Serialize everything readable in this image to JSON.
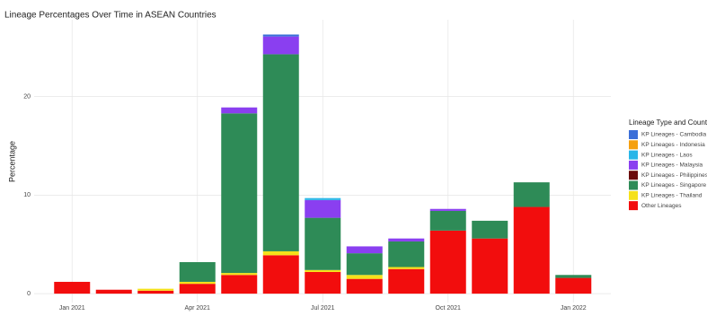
{
  "chart_data": {
    "type": "stacked_bar",
    "title": "Lineage Percentages Over Time in ASEAN Countries",
    "y_label": "Percentage",
    "legend_title": "Lineage Type and Country",
    "legend_position": "right",
    "grid": true,
    "categories": [
      "Jan 2021",
      null,
      null,
      "Apr 2021",
      null,
      null,
      "Jul 2021",
      null,
      null,
      "Oct 2021",
      null,
      null,
      "Jan 2022"
    ],
    "ylim": [
      -0.9,
      27.8
    ],
    "yticks": [
      0,
      10,
      20
    ],
    "series": [
      {
        "name": "KP Lineages - Cambodia",
        "color": "#3b6fd8",
        "values": [
          0,
          0,
          0,
          0,
          0,
          0.2,
          0,
          0,
          0,
          0,
          0,
          0,
          0
        ]
      },
      {
        "name": "KP Lineages - Indonesia",
        "color": "#f5a00f",
        "values": [
          0,
          0,
          0,
          0,
          0,
          0,
          0,
          0,
          0,
          0,
          0,
          0,
          0
        ]
      },
      {
        "name": "KP Lineages - Laos",
        "color": "#29b6e8",
        "values": [
          0,
          0,
          0,
          0,
          0,
          0,
          0.2,
          0,
          0,
          0,
          0,
          0,
          0
        ]
      },
      {
        "name": "KP Lineages - Malaysia",
        "color": "#8a3ff0",
        "values": [
          0,
          0,
          0,
          0,
          0.6,
          1.8,
          1.8,
          0.7,
          0.3,
          0.2,
          0,
          0,
          0
        ]
      },
      {
        "name": "KP Lineages - Philippines",
        "color": "#6b0c0c",
        "values": [
          0,
          0,
          0,
          0,
          0,
          0,
          0,
          0,
          0,
          0,
          0,
          0,
          0
        ]
      },
      {
        "name": "KP Lineages - Singapore",
        "color": "#2e8b57",
        "values": [
          0,
          0,
          0,
          2.0,
          16.2,
          20.0,
          5.3,
          2.2,
          2.6,
          2.0,
          1.8,
          2.5,
          0.3
        ]
      },
      {
        "name": "KP Lineages - Thailand",
        "color": "#f5e11a",
        "values": [
          0,
          0,
          0.2,
          0.2,
          0.2,
          0.4,
          0.2,
          0.4,
          0.2,
          0,
          0,
          0,
          0
        ]
      },
      {
        "name": "Other Lineages",
        "color": "#f20d0d",
        "values": [
          1.2,
          0.4,
          0.3,
          1.0,
          1.9,
          3.9,
          2.2,
          1.5,
          2.5,
          6.4,
          5.6,
          8.8,
          1.6
        ]
      }
    ]
  }
}
